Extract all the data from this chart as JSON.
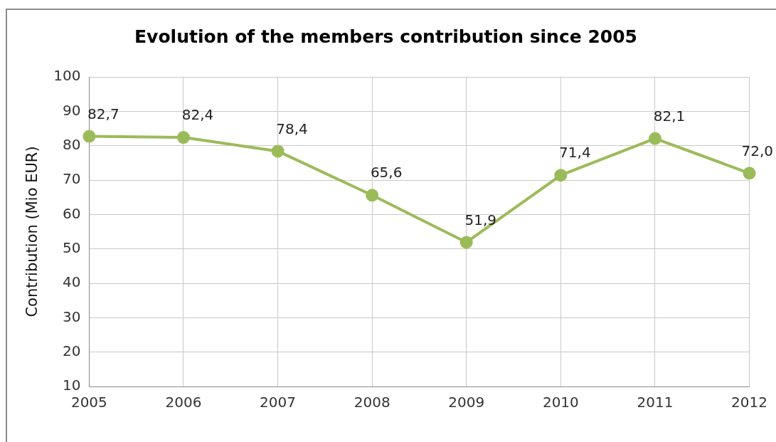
{
  "chart_data": {
    "type": "line",
    "title": "Evolution of the members contribution since 2005",
    "ylabel": "Contribution (Mio EUR)",
    "categories": [
      "2005",
      "2006",
      "2007",
      "2008",
      "2009",
      "2010",
      "2011",
      "2012"
    ],
    "series": [
      {
        "color": "#9bbb59",
        "values": [
          82.7,
          82.4,
          78.4,
          65.6,
          51.9,
          71.4,
          82.1,
          72.0
        ],
        "value_labels": [
          "82,7",
          "82,4",
          "78,4",
          "65,6",
          "51,9",
          "71,4",
          "82,1",
          "72,0"
        ]
      }
    ],
    "ylim": [
      10,
      100
    ],
    "yticks": [
      10,
      20,
      30,
      40,
      50,
      60,
      70,
      80,
      90,
      100
    ],
    "grid": true,
    "legend": false,
    "marker": "circle",
    "line_style": "solid"
  }
}
